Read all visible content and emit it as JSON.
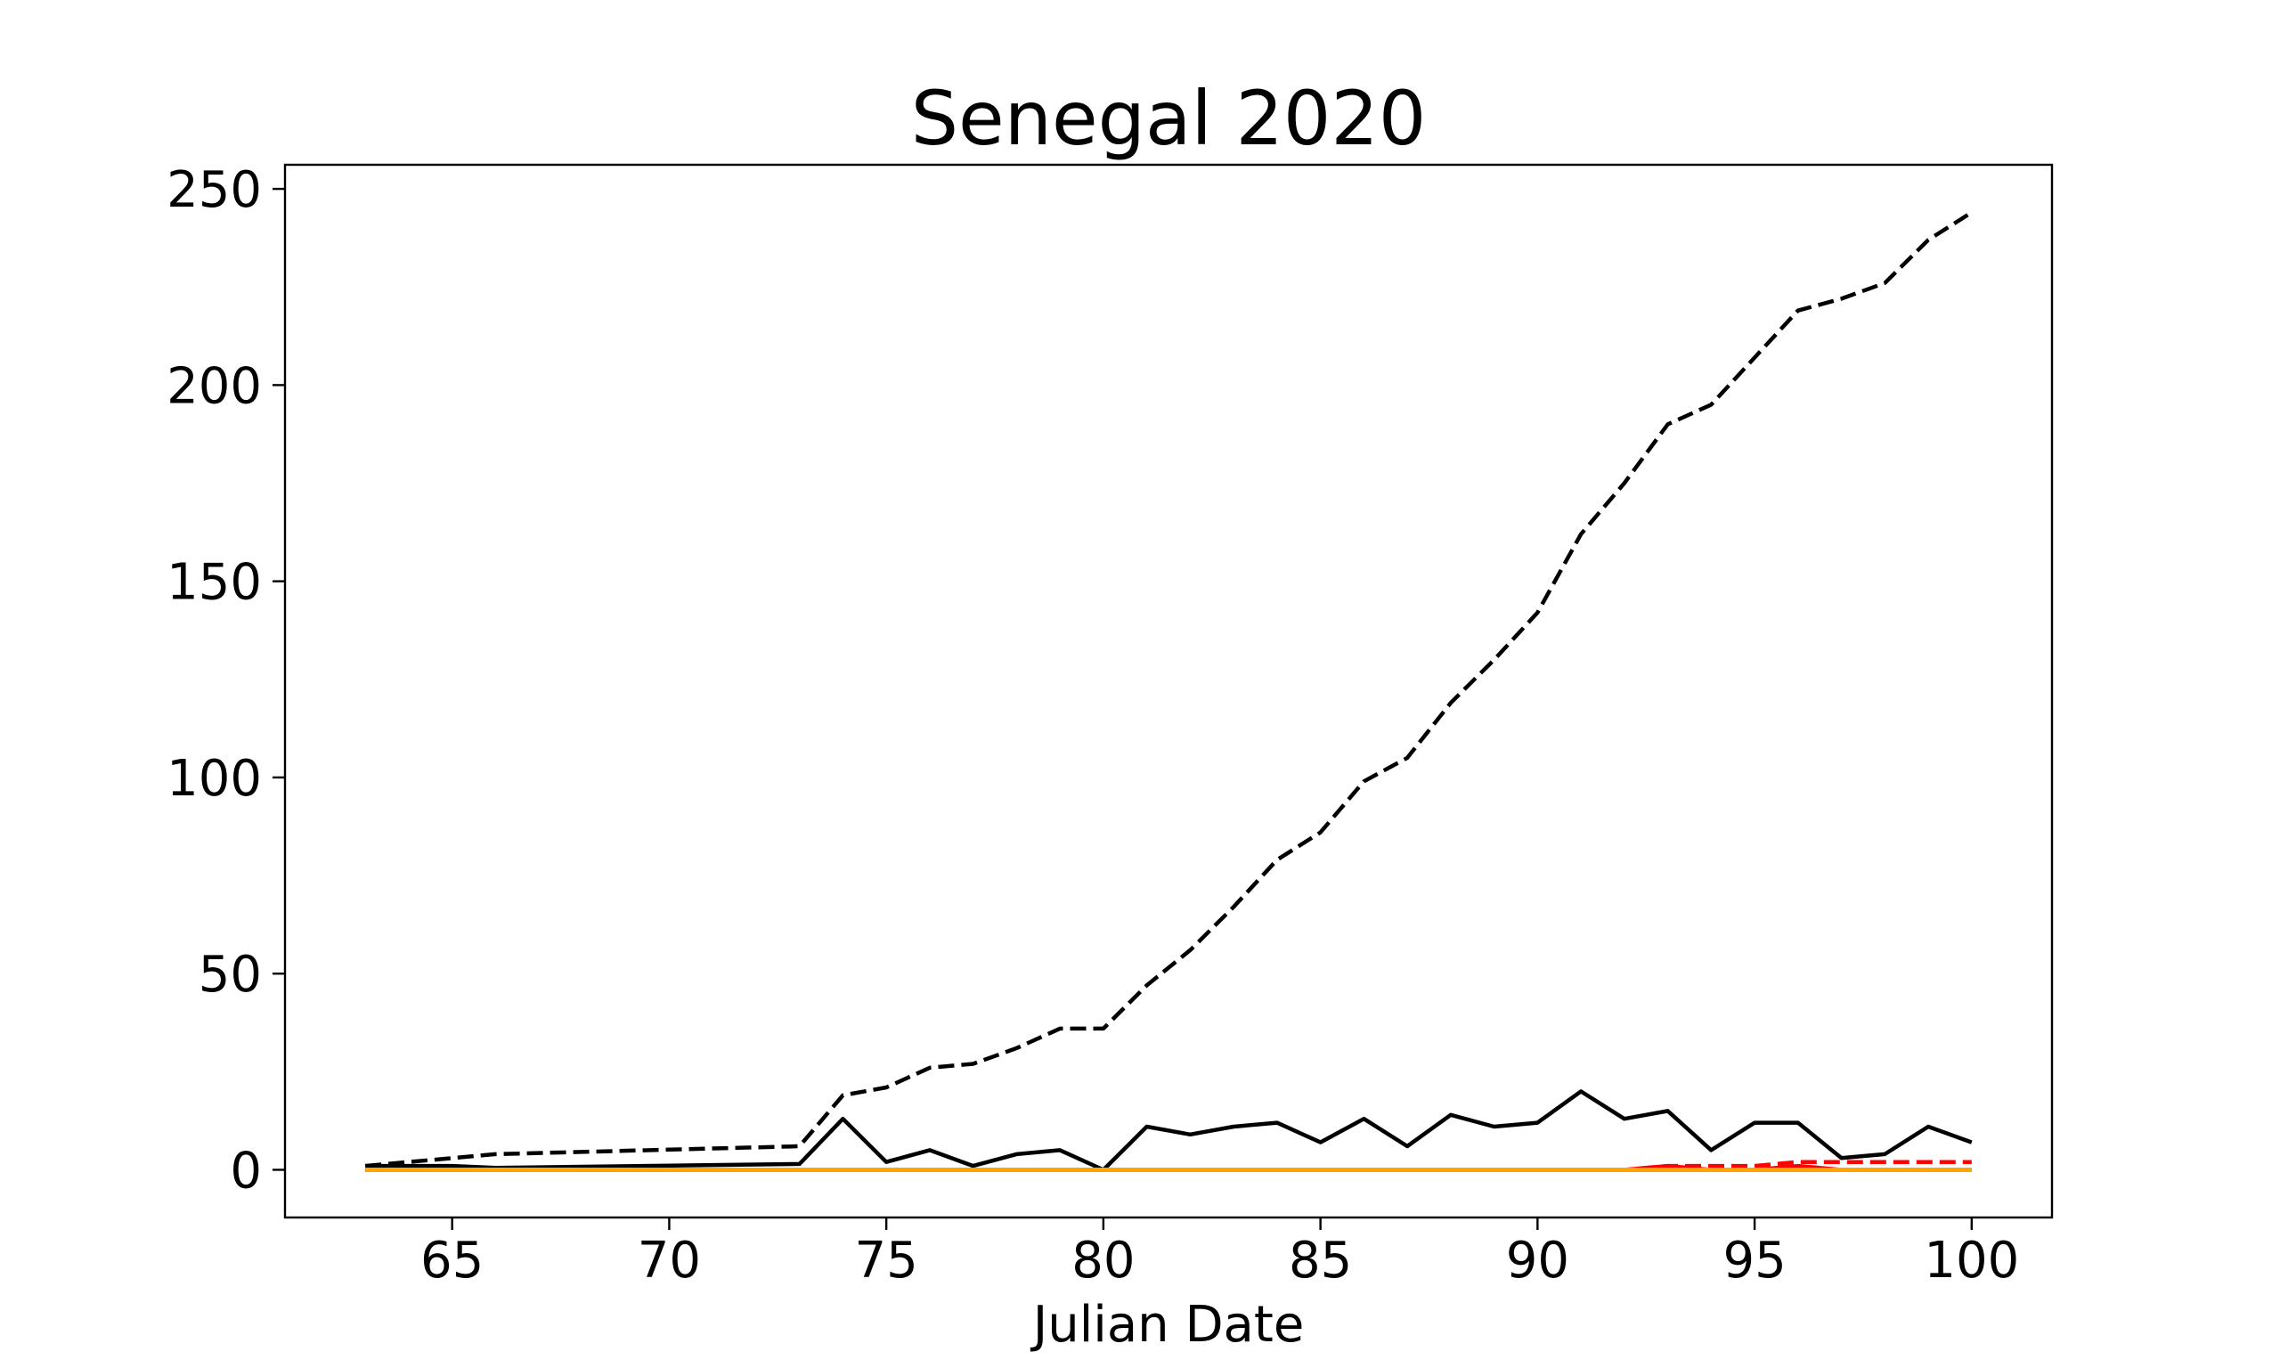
{
  "chart_data": {
    "type": "line",
    "title": "Senegal 2020",
    "xlabel": "Julian Date",
    "ylabel": "",
    "xlim": [
      61.15,
      101.85
    ],
    "ylim": [
      -12.15,
      256.15
    ],
    "xticks": [
      65,
      70,
      75,
      80,
      85,
      90,
      95,
      100
    ],
    "yticks": [
      0,
      50,
      100,
      150,
      200,
      250
    ],
    "grid": false,
    "legend": "none",
    "series": [
      {
        "style": "dashed",
        "color": "#000000",
        "x": [
          63,
          64,
          65,
          66,
          73,
          74,
          75,
          76,
          77,
          78,
          79,
          80,
          81,
          82,
          83,
          84,
          85,
          86,
          87,
          88,
          89,
          90,
          91,
          92,
          93,
          94,
          95,
          96,
          97,
          98,
          99,
          100
        ],
        "values": [
          1,
          2,
          3,
          4,
          6,
          19,
          21,
          26,
          27,
          31,
          36,
          36,
          47,
          56,
          67,
          79,
          86,
          99,
          105,
          119,
          130,
          142,
          162,
          175,
          190,
          195,
          207,
          219,
          222,
          226,
          237,
          244
        ]
      },
      {
        "style": "solid",
        "color": "#000000",
        "x": [
          63,
          64,
          65,
          66,
          73,
          74,
          75,
          76,
          77,
          78,
          79,
          80,
          81,
          82,
          83,
          84,
          85,
          86,
          87,
          88,
          89,
          90,
          91,
          92,
          93,
          94,
          95,
          96,
          97,
          98,
          99,
          100
        ],
        "values": [
          1,
          1,
          1,
          0.5,
          1.5,
          13,
          2,
          5,
          1,
          4,
          5,
          0,
          11,
          9,
          11,
          12,
          7,
          13,
          6,
          14,
          11,
          12,
          20,
          13,
          15,
          5,
          12,
          12,
          3,
          4,
          11,
          7
        ]
      },
      {
        "style": "dashed",
        "color": "#ff0000",
        "x": [
          63,
          92,
          93,
          94,
          95,
          96,
          97,
          98,
          99,
          100
        ],
        "values": [
          0,
          0,
          1,
          1,
          1,
          2,
          2,
          2,
          2,
          2
        ]
      },
      {
        "style": "solid",
        "color": "#ff0000",
        "x": [
          63,
          92,
          93,
          94,
          95,
          96,
          97,
          98,
          99,
          100
        ],
        "values": [
          0,
          0,
          1,
          0,
          0,
          1,
          0,
          0,
          0,
          0
        ]
      },
      {
        "style": "solid",
        "color": "#ffa500",
        "x": [
          63,
          100
        ],
        "values": [
          0,
          0
        ]
      }
    ]
  }
}
